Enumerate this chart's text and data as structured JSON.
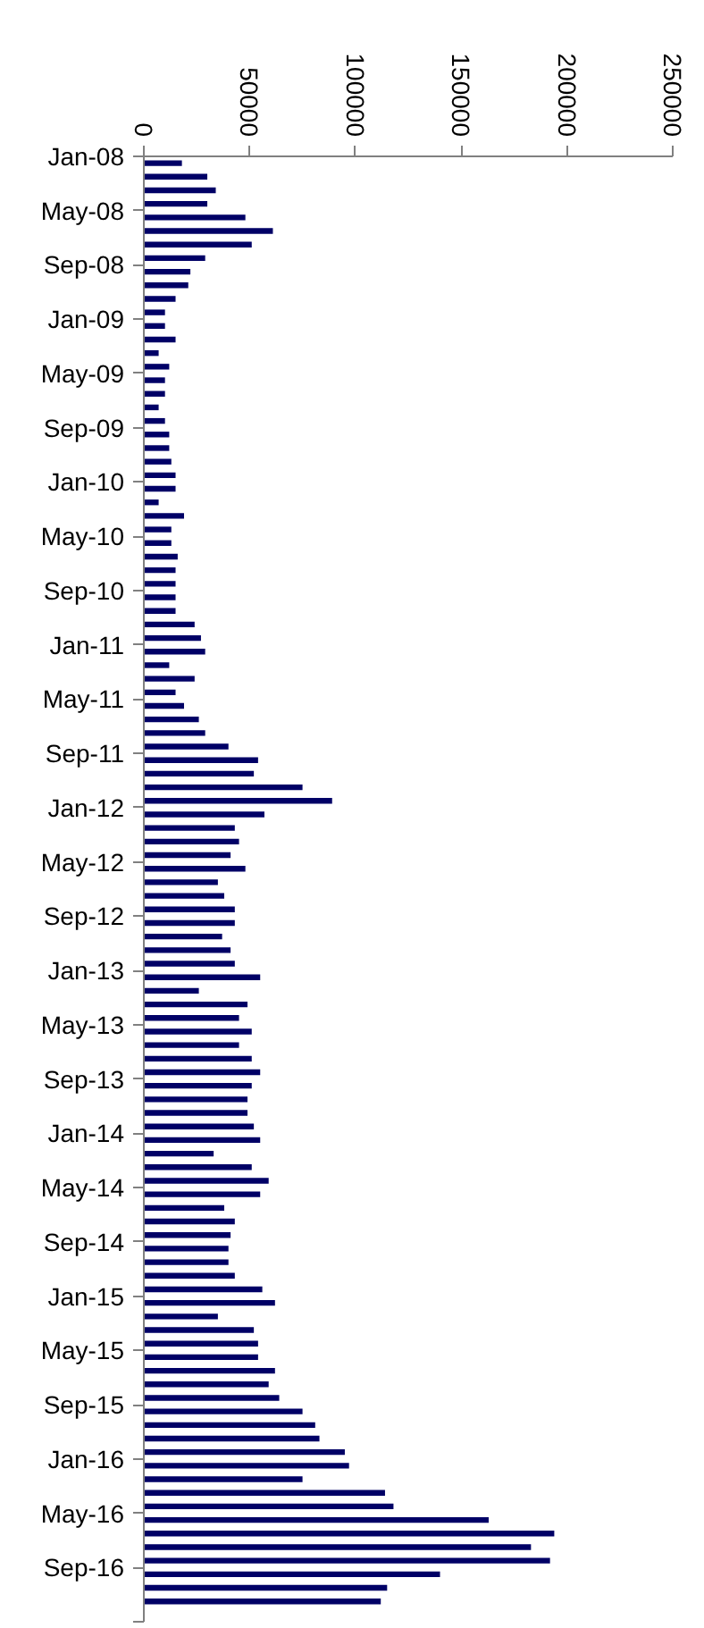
{
  "chart_data": {
    "type": "bar",
    "orientation": "horizontal",
    "color": "#000066",
    "categories": [
      "Jan-08",
      null,
      null,
      null,
      "May-08",
      null,
      null,
      null,
      "Sep-08",
      null,
      null,
      null,
      "Jan-09",
      null,
      null,
      null,
      "May-09",
      null,
      null,
      null,
      "Sep-09",
      null,
      null,
      null,
      "Jan-10",
      null,
      null,
      null,
      "May-10",
      null,
      null,
      null,
      "Sep-10",
      null,
      null,
      null,
      "Jan-11",
      null,
      null,
      null,
      "May-11",
      null,
      null,
      null,
      "Sep-11",
      null,
      null,
      null,
      "Jan-12",
      null,
      null,
      null,
      "May-12",
      null,
      null,
      null,
      "Sep-12",
      null,
      null,
      null,
      "Jan-13",
      null,
      null,
      null,
      "May-13",
      null,
      null,
      null,
      "Sep-13",
      null,
      null,
      null,
      "Jan-14",
      null,
      null,
      null,
      "May-14",
      null,
      null,
      null,
      "Sep-14",
      null,
      null,
      null,
      "Jan-15",
      null,
      null,
      null,
      "May-15",
      null,
      null,
      null,
      "Sep-15",
      null,
      null,
      null,
      "Jan-16",
      null,
      null,
      null,
      "May-16",
      null,
      null,
      null,
      "Sep-16",
      null,
      null
    ],
    "values": [
      18000,
      30000,
      34000,
      30000,
      48000,
      61000,
      51000,
      29000,
      22000,
      21000,
      15000,
      10000,
      10000,
      15000,
      7000,
      12000,
      10000,
      10000,
      7000,
      10000,
      12000,
      12000,
      13000,
      15000,
      15000,
      7000,
      19000,
      13000,
      13000,
      16000,
      15000,
      15000,
      15000,
      15000,
      24000,
      27000,
      29000,
      12000,
      24000,
      15000,
      19000,
      26000,
      29000,
      40000,
      54000,
      52000,
      75000,
      89000,
      57000,
      43000,
      45000,
      41000,
      48000,
      35000,
      38000,
      43000,
      43000,
      37000,
      41000,
      43000,
      55000,
      26000,
      49000,
      45000,
      51000,
      45000,
      51000,
      55000,
      51000,
      49000,
      49000,
      52000,
      55000,
      33000,
      51000,
      59000,
      55000,
      38000,
      43000,
      41000,
      40000,
      40000,
      43000,
      56000,
      62000,
      35000,
      52000,
      54000,
      54000,
      62000,
      59000,
      64000,
      75000,
      81000,
      83000,
      95000,
      97000,
      75000,
      114000,
      118000,
      163000,
      194000,
      183000,
      192000,
      140000,
      115000,
      112000
    ],
    "xlim": [
      0,
      250000
    ],
    "xticks": [
      0,
      50000,
      100000,
      150000,
      200000,
      250000
    ]
  }
}
